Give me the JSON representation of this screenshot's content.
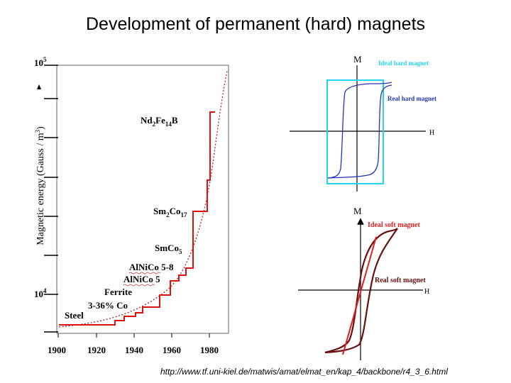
{
  "title": "Development of permanent (hard) magnets",
  "source_url": "http://www.tf.uni-kiel.de/matwis/amat/elmat_en/kap_4/backbone/r4_3_6.html",
  "colors": {
    "steps": "#dd1111",
    "trend": "#aa2222",
    "ideal_hard": "#22d4ee",
    "real_hard": "#2233bb",
    "soft": "#6a0f0f",
    "ideal_soft": "#e02020"
  },
  "energy_chart": {
    "y_axis_label": "Magnetic energy (Gauss / m³)",
    "y_label_base": "Magnetic energy (Gauss / m",
    "y_label_sup": "3",
    "y_label_end": ")",
    "y_tick_top": "10",
    "y_tick_top_exp": "5",
    "y_tick_bottom": "10",
    "y_tick_bottom_exp": "4",
    "x_ticks": [
      "1900",
      "1920",
      "1940",
      "1960",
      "1980"
    ],
    "materials": {
      "nd": {
        "base": "Nd",
        "sub1": "2",
        "mid": "Fe",
        "sub2": "14",
        "end": "B"
      },
      "smco17": {
        "base": "Sm",
        "sub1": "2",
        "mid": "Co",
        "sub2": "17"
      },
      "smco5": {
        "base": "SmCo",
        "sub1": "5"
      },
      "alnico58": "AlNiCo 5-8",
      "alnico5": "AlNiCo 5",
      "ferrite": "Ferrite",
      "co_steel": "3-36% Co",
      "steel": "Steel"
    }
  },
  "hard_loop": {
    "axis_m": "M",
    "axis_h": "H",
    "ideal_label": "Ideal hard magnet",
    "real_label": "Real hard magnet"
  },
  "soft_loop": {
    "axis_m": "M",
    "axis_h": "H",
    "ideal_label": "Ideal soft magnet",
    "real_label": "Real soft magnet"
  }
}
